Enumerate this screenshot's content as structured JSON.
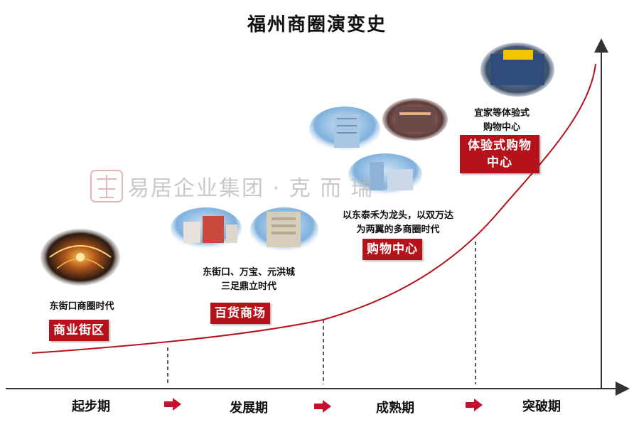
{
  "title": "福州商圈演变史",
  "watermark_text": "易居企业集团 · 克 而 瑞",
  "phases": [
    "起步期",
    "发展期",
    "成熟期",
    "突破期"
  ],
  "stages": [
    {
      "caption": [
        "东街口商圈时代"
      ],
      "tag": [
        "商业街区"
      ]
    },
    {
      "caption": [
        "东街口、万宝、元洪城",
        "三足鼎立时代"
      ],
      "tag": [
        "百货商场"
      ]
    },
    {
      "caption": [
        "以东泰禾为龙头，以双万达",
        "为两翼的多商圈时代"
      ],
      "tag": [
        "购物中心"
      ]
    },
    {
      "caption": [
        "宜家等体验式",
        "购物中心"
      ],
      "tag": [
        "体验式购物",
        "中心"
      ]
    }
  ],
  "colors": {
    "accent": "#b5121b",
    "curve": "#b5121b",
    "axis": "#333333"
  },
  "icons": {
    "phase_arrow": "right-arrow-icon"
  }
}
